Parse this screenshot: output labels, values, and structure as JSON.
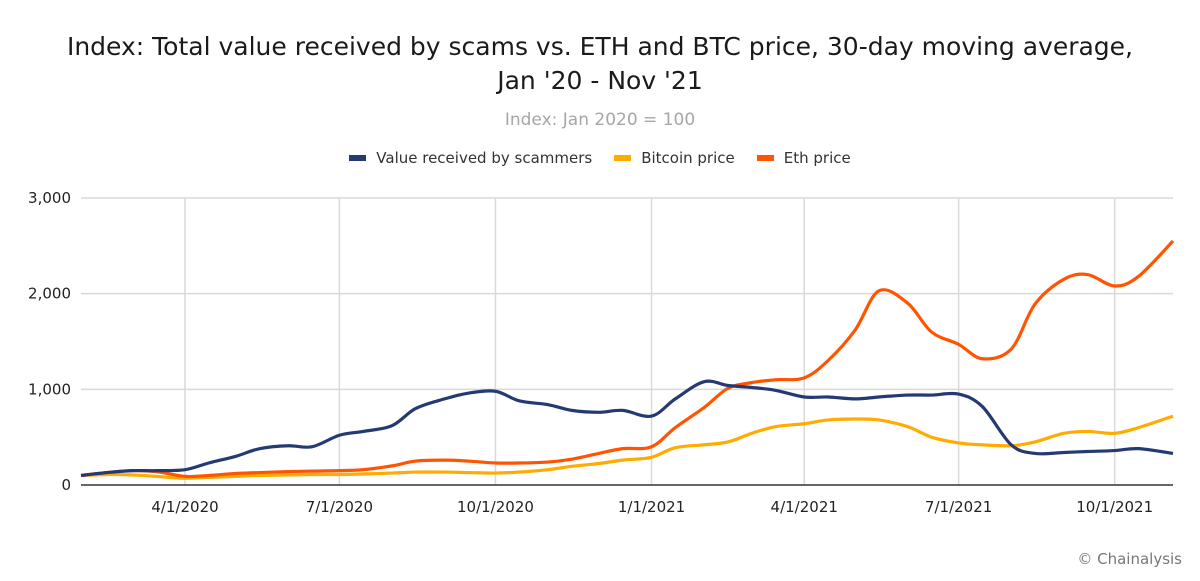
{
  "title": {
    "line1": "Index: Total value received by scams vs. ETH and BTC price, 30-day moving average,",
    "line2": "Jan '20 - Nov '21"
  },
  "subtitle": "Index: Jan 2020 = 100",
  "legend": [
    {
      "label": "Value received by scammers",
      "color": "#253a73"
    },
    {
      "label": "Bitcoin price",
      "color": "#ffab00"
    },
    {
      "label": "Eth price",
      "color": "#ff5400"
    }
  ],
  "credit": "© Chainalysis",
  "chart_data": {
    "type": "line",
    "title": "Index: Total value received by scams vs. ETH and BTC price, 30-day moving average, Jan '20 - Nov '21",
    "subtitle": "Index: Jan 2020 = 100",
    "xlabel": "",
    "ylabel": "",
    "ylim": [
      0,
      3000
    ],
    "yticks": [
      "0",
      "1,000",
      "2,000",
      "3,000"
    ],
    "xticks": [
      "4/1/2020",
      "7/1/2020",
      "10/1/2020",
      "1/1/2021",
      "4/1/2021",
      "7/1/2021",
      "10/1/2021"
    ],
    "grid": true,
    "legend_position": "top",
    "x": [
      "2020-01-30",
      "2020-02-15",
      "2020-03-01",
      "2020-03-15",
      "2020-04-01",
      "2020-04-15",
      "2020-05-01",
      "2020-05-15",
      "2020-06-01",
      "2020-06-15",
      "2020-07-01",
      "2020-07-15",
      "2020-08-01",
      "2020-08-15",
      "2020-09-01",
      "2020-09-15",
      "2020-10-01",
      "2020-10-15",
      "2020-11-01",
      "2020-11-15",
      "2020-12-01",
      "2020-12-15",
      "2021-01-01",
      "2021-01-15",
      "2021-02-01",
      "2021-02-15",
      "2021-03-01",
      "2021-03-15",
      "2021-04-01",
      "2021-04-15",
      "2021-05-01",
      "2021-05-15",
      "2021-06-01",
      "2021-06-15",
      "2021-07-01",
      "2021-07-15",
      "2021-08-01",
      "2021-08-15",
      "2021-09-01",
      "2021-09-15",
      "2021-10-01",
      "2021-10-15",
      "2021-11-05"
    ],
    "series": [
      {
        "name": "Value received by scammers",
        "color": "#253a73",
        "values": [
          100,
          130,
          150,
          150,
          160,
          230,
          300,
          380,
          410,
          400,
          520,
          560,
          620,
          800,
          900,
          960,
          980,
          880,
          840,
          780,
          760,
          780,
          720,
          900,
          1080,
          1040,
          1020,
          990,
          920,
          920,
          900,
          920,
          940,
          940,
          950,
          820,
          420,
          330,
          340,
          350,
          360,
          380,
          330
        ]
      },
      {
        "name": "Bitcoin price",
        "color": "#ffab00",
        "values": [
          100,
          110,
          105,
          90,
          70,
          80,
          90,
          100,
          105,
          110,
          110,
          115,
          125,
          135,
          135,
          130,
          125,
          135,
          160,
          195,
          225,
          260,
          290,
          390,
          420,
          450,
          540,
          610,
          640,
          680,
          690,
          680,
          610,
          500,
          440,
          420,
          410,
          450,
          540,
          560,
          540,
          600,
          720
        ]
      },
      {
        "name": "Eth price",
        "color": "#ff5400",
        "values": [
          100,
          130,
          150,
          140,
          90,
          100,
          120,
          130,
          140,
          145,
          150,
          160,
          200,
          250,
          260,
          250,
          230,
          230,
          240,
          270,
          330,
          380,
          400,
          600,
          810,
          1010,
          1070,
          1100,
          1120,
          1300,
          1620,
          2030,
          1900,
          1600,
          1470,
          1320,
          1420,
          1890,
          2150,
          2200,
          2080,
          2180,
          2550
        ]
      }
    ]
  }
}
